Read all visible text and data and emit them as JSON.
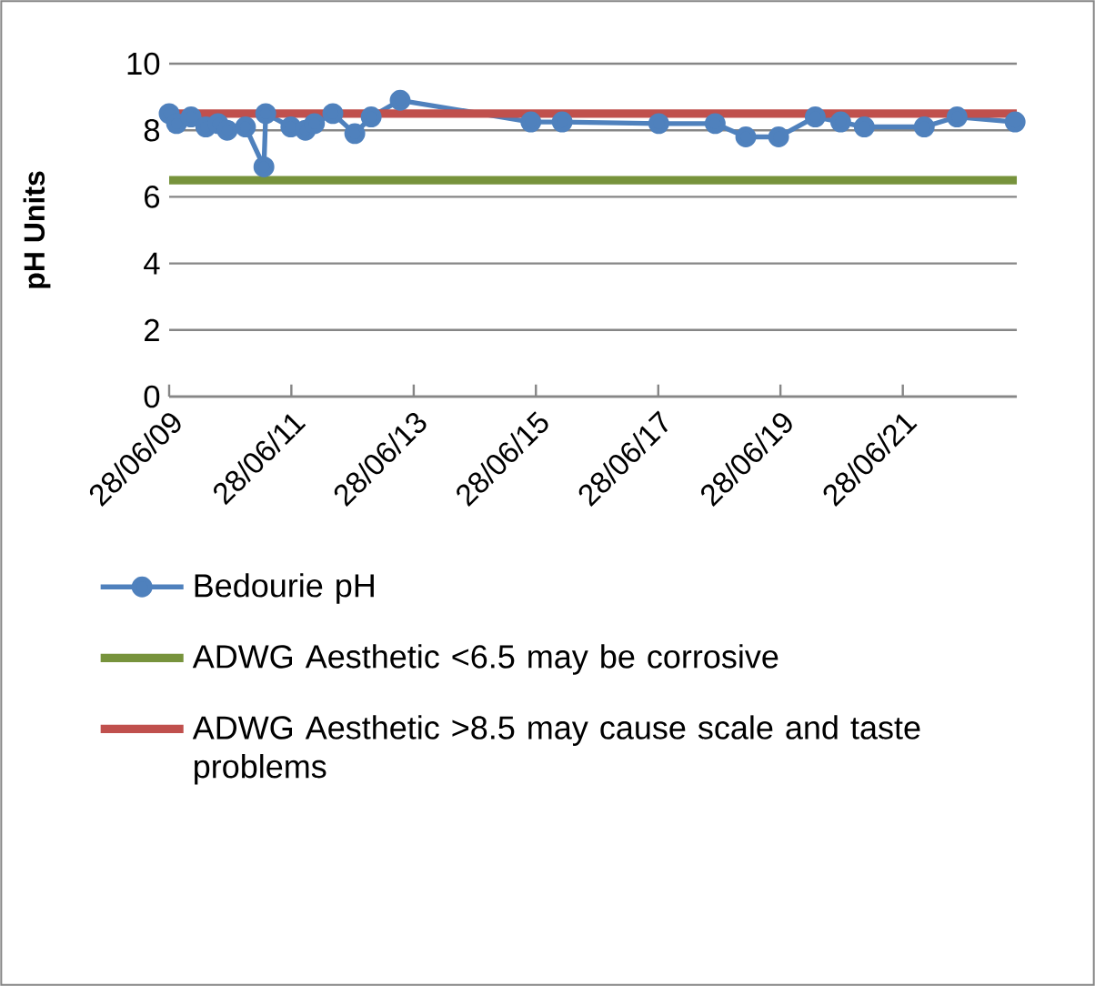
{
  "chart_data": {
    "type": "line",
    "ylabel": "pH Units",
    "x": [
      "2009-06-28",
      "2009-08-11",
      "2009-11-06",
      "2010-02-02",
      "2010-04-16",
      "2010-06-10",
      "2010-09-27",
      "2011-01-15",
      "2011-01-26",
      "2011-06-25",
      "2011-09-20",
      "2011-11-13",
      "2012-03-02",
      "2012-07-11",
      "2012-10-17",
      "2013-04-08",
      "2015-05-29",
      "2015-12-02",
      "2017-07-01",
      "2018-06-03",
      "2018-12-03",
      "2019-06-17",
      "2020-01-22",
      "2020-06-22",
      "2020-11-10",
      "2021-11-03",
      "2022-05-18",
      "2023-04-30"
    ],
    "series": [
      {
        "name": "Bedourie pH",
        "color": "#4f81bd",
        "values": [
          8.5,
          8.2,
          8.4,
          8.1,
          8.2,
          8.0,
          8.1,
          6.9,
          8.5,
          8.1,
          8.0,
          8.2,
          8.5,
          7.9,
          8.4,
          8.9,
          8.25,
          8.25,
          8.2,
          8.2,
          7.8,
          7.8,
          8.4,
          8.25,
          8.1,
          8.1,
          8.4,
          8.25
        ]
      }
    ],
    "marker": "circle",
    "line_style": "solid",
    "ref_lines": [
      {
        "axis": "y",
        "value": 6.5,
        "label": "ADWG Aesthetic <6.5 may be corrosive",
        "color": "#77933c"
      },
      {
        "axis": "y",
        "value": 8.5,
        "label": "ADWG Aesthetic >8.5 may cause scale and taste problems",
        "color": "#c0504d"
      }
    ],
    "xlim": [
      "2009-06-28",
      "2023-05-10"
    ],
    "xticks": [
      {
        "value": "2009-06-28",
        "label": "28/06/09"
      },
      {
        "value": "2011-06-28",
        "label": "28/06/11"
      },
      {
        "value": "2013-06-28",
        "label": "28/06/13"
      },
      {
        "value": "2015-06-28",
        "label": "28/06/15"
      },
      {
        "value": "2017-06-28",
        "label": "28/06/17"
      },
      {
        "value": "2019-06-28",
        "label": "28/06/19"
      },
      {
        "value": "2021-06-28",
        "label": "28/06/21"
      }
    ],
    "ylim": [
      0,
      10
    ],
    "yticks": [
      0,
      2,
      4,
      6,
      8,
      10
    ],
    "grid": "y",
    "legend": "bottom"
  }
}
